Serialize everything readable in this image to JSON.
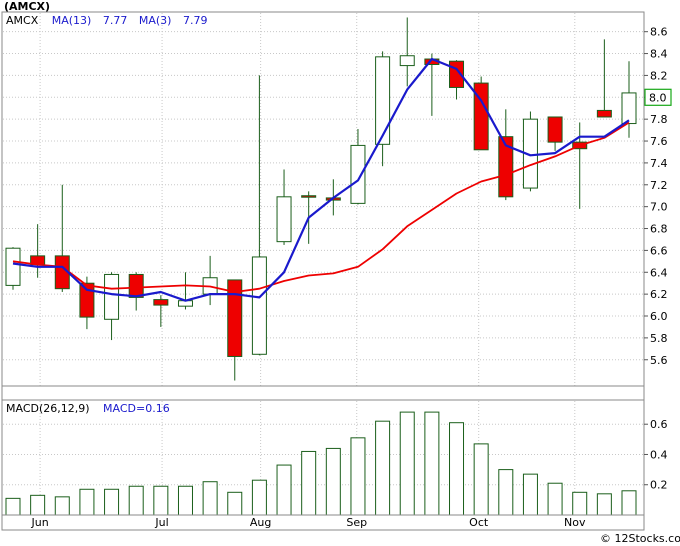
{
  "header": {
    "symbol": "(AMCX)"
  },
  "price_legend": {
    "ticker": "AMCX",
    "ma13_label": "MA(13)",
    "ma13_value": "7.77",
    "ma3_label": "MA(3)",
    "ma3_value": "7.79"
  },
  "macd_legend": {
    "label": "MACD(26,12,9)",
    "value_label": "MACD=0.16"
  },
  "last_price_label": "8.0",
  "watermark": "© 12Stocks.com",
  "colors": {
    "up_candle_fill": "#ffffff",
    "down_candle_fill": "#ee0000",
    "candle_edge": "#1a5e1a",
    "ma3": "#1a1acc",
    "ma13": "#ee0000",
    "macd_bar_edge": "#1a5e1a",
    "grid": "#c8c8c8",
    "last_price_box": "#16a816"
  },
  "chart_data": [
    {
      "type": "candlestick",
      "title": "(AMCX)",
      "x_tick_labels": [
        "Jun",
        "Jul",
        "Aug",
        "Sep",
        "Oct",
        "Nov"
      ],
      "y_tick_labels": [
        "5.6",
        "5.8",
        "6.0",
        "6.2",
        "6.4",
        "6.6",
        "6.8",
        "7.0",
        "7.2",
        "7.4",
        "7.6",
        "7.8",
        "8.0",
        "8.2",
        "8.4",
        "8.6"
      ],
      "ylim": [
        5.36,
        8.78
      ],
      "grid": true,
      "candles": [
        {
          "open": 6.28,
          "high": 6.63,
          "low": 6.24,
          "close": 6.62
        },
        {
          "open": 6.55,
          "high": 6.84,
          "low": 6.35,
          "close": 6.47
        },
        {
          "open": 6.55,
          "high": 7.2,
          "low": 6.22,
          "close": 6.25
        },
        {
          "open": 6.3,
          "high": 6.36,
          "low": 5.88,
          "close": 5.99
        },
        {
          "open": 5.97,
          "high": 6.4,
          "low": 5.78,
          "close": 6.38
        },
        {
          "open": 6.38,
          "high": 6.4,
          "low": 6.05,
          "close": 6.17
        },
        {
          "open": 6.15,
          "high": 6.19,
          "low": 5.9,
          "close": 6.1
        },
        {
          "open": 6.09,
          "high": 6.4,
          "low": 6.06,
          "close": 6.14
        },
        {
          "open": 6.2,
          "high": 6.55,
          "low": 6.1,
          "close": 6.35
        },
        {
          "open": 6.33,
          "high": 6.33,
          "low": 5.41,
          "close": 5.63
        },
        {
          "open": 5.65,
          "high": 8.2,
          "low": 5.64,
          "close": 6.54
        },
        {
          "open": 6.68,
          "high": 7.34,
          "low": 6.65,
          "close": 7.09
        },
        {
          "open": 7.1,
          "high": 7.14,
          "low": 6.66,
          "close": 7.09
        },
        {
          "open": 7.08,
          "high": 7.25,
          "low": 6.92,
          "close": 7.06
        },
        {
          "open": 7.03,
          "high": 7.71,
          "low": 7.02,
          "close": 7.56
        },
        {
          "open": 7.57,
          "high": 8.42,
          "low": 7.37,
          "close": 8.37
        },
        {
          "open": 8.29,
          "high": 8.73,
          "low": 8.1,
          "close": 8.38
        },
        {
          "open": 8.35,
          "high": 8.4,
          "low": 7.83,
          "close": 8.3
        },
        {
          "open": 8.33,
          "high": 8.34,
          "low": 7.98,
          "close": 8.09
        },
        {
          "open": 8.13,
          "high": 8.19,
          "low": 7.52,
          "close": 7.52
        },
        {
          "open": 7.64,
          "high": 7.89,
          "low": 7.06,
          "close": 7.09
        },
        {
          "open": 7.17,
          "high": 7.87,
          "low": 7.14,
          "close": 7.8
        },
        {
          "open": 7.82,
          "high": 7.82,
          "low": 7.51,
          "close": 7.59
        },
        {
          "open": 7.59,
          "high": 7.77,
          "low": 6.98,
          "close": 7.53
        },
        {
          "open": 7.88,
          "high": 8.53,
          "low": 7.82,
          "close": 7.82
        },
        {
          "open": 7.76,
          "high": 8.33,
          "low": 7.63,
          "close": 8.04
        }
      ],
      "series": [
        {
          "name": "MA(13)",
          "values": [
            6.5,
            6.47,
            6.45,
            6.28,
            6.25,
            6.26,
            6.27,
            6.28,
            6.27,
            6.22,
            6.25,
            6.32,
            6.37,
            6.39,
            6.45,
            6.61,
            6.82,
            6.97,
            7.12,
            7.23,
            7.29,
            7.38,
            7.46,
            7.56,
            7.63,
            7.77
          ]
        },
        {
          "name": "MA(3)",
          "values": [
            6.48,
            6.45,
            6.45,
            6.24,
            6.2,
            6.18,
            6.22,
            6.14,
            6.2,
            6.2,
            6.17,
            6.4,
            6.9,
            7.08,
            7.24,
            7.65,
            8.07,
            8.35,
            8.26,
            7.97,
            7.56,
            7.47,
            7.49,
            7.64,
            7.64,
            7.79
          ]
        }
      ]
    },
    {
      "type": "bar",
      "title": "MACD(26,12,9)",
      "x_tick_labels": [
        "Jun",
        "Jul",
        "Aug",
        "Sep",
        "Oct",
        "Nov"
      ],
      "y_tick_labels": [
        "0.2",
        "0.4",
        "0.6"
      ],
      "ylim": [
        0.0,
        0.76
      ],
      "values": [
        0.11,
        0.13,
        0.12,
        0.17,
        0.17,
        0.19,
        0.19,
        0.19,
        0.22,
        0.15,
        0.23,
        0.33,
        0.42,
        0.44,
        0.51,
        0.62,
        0.68,
        0.68,
        0.61,
        0.47,
        0.3,
        0.27,
        0.21,
        0.15,
        0.14,
        0.16
      ]
    }
  ]
}
